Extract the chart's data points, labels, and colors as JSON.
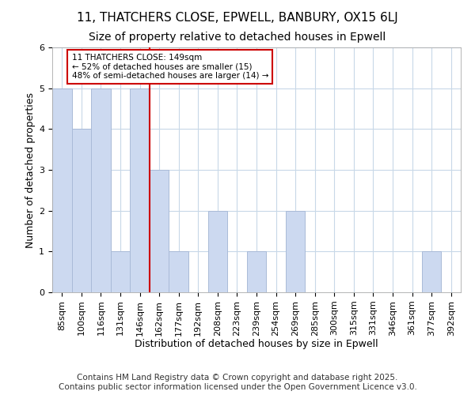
{
  "title": "11, THATCHERS CLOSE, EPWELL, BANBURY, OX15 6LJ",
  "subtitle": "Size of property relative to detached houses in Epwell",
  "xlabel": "Distribution of detached houses by size in Epwell",
  "ylabel": "Number of detached properties",
  "bins": [
    "85sqm",
    "100sqm",
    "116sqm",
    "131sqm",
    "146sqm",
    "162sqm",
    "177sqm",
    "192sqm",
    "208sqm",
    "223sqm",
    "239sqm",
    "254sqm",
    "269sqm",
    "285sqm",
    "300sqm",
    "315sqm",
    "331sqm",
    "346sqm",
    "361sqm",
    "377sqm",
    "392sqm"
  ],
  "values": [
    5,
    4,
    5,
    1,
    5,
    3,
    1,
    0,
    2,
    0,
    1,
    0,
    2,
    0,
    0,
    0,
    0,
    0,
    0,
    1,
    0
  ],
  "bar_color": "#ccd9f0",
  "bar_edge_color": "#aabbd8",
  "property_line_bin_index": 5,
  "property_line_color": "#cc0000",
  "annotation_text": "11 THATCHERS CLOSE: 149sqm\n← 52% of detached houses are smaller (15)\n48% of semi-detached houses are larger (14) →",
  "annotation_box_color": "#ffffff",
  "annotation_box_edge_color": "#cc0000",
  "ylim": [
    0,
    6
  ],
  "yticks": [
    0,
    1,
    2,
    3,
    4,
    5,
    6
  ],
  "footer": "Contains HM Land Registry data © Crown copyright and database right 2025.\nContains public sector information licensed under the Open Government Licence v3.0.",
  "bg_color": "#ffffff",
  "plot_bg_color": "#ffffff",
  "grid_color": "#c8d8e8",
  "title_fontsize": 11,
  "subtitle_fontsize": 10,
  "axis_label_fontsize": 9,
  "tick_fontsize": 8,
  "footer_fontsize": 7.5
}
